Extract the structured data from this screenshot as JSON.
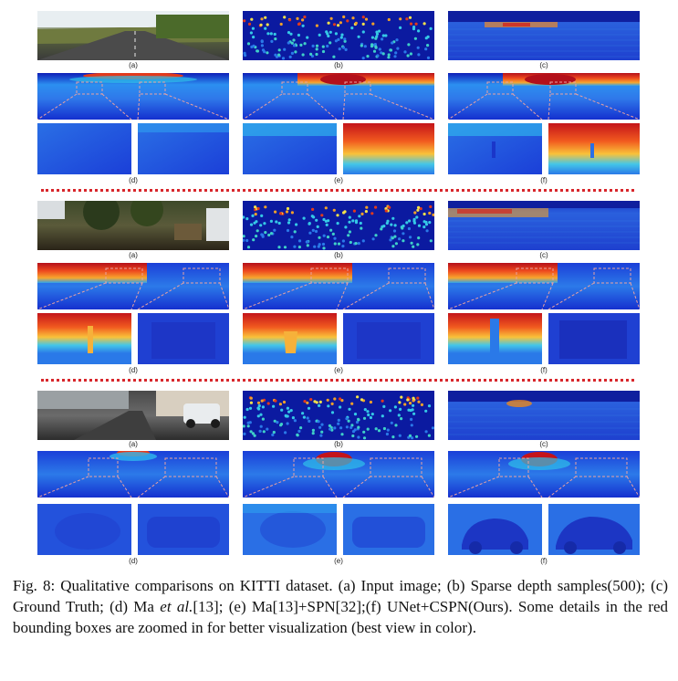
{
  "figure": {
    "groups": [
      {
        "row1_labels": [
          "(a)",
          "(b)",
          "(c)"
        ],
        "row2_labels": [
          "(d)",
          "(e)",
          "(f)"
        ]
      },
      {
        "row1_labels": [
          "(a)",
          "(b)",
          "(c)"
        ],
        "row2_labels": [
          "(d)",
          "(e)",
          "(f)"
        ]
      },
      {
        "row1_labels": [
          "(a)",
          "(b)",
          "(c)"
        ],
        "row2_labels": [
          "(d)",
          "(e)",
          "(f)"
        ]
      }
    ]
  },
  "caption": {
    "prefix": "Fig. 8: Qualitative comparisons on KITTI dataset. (a) Input image; (b) Sparse depth samples(500); (c) Ground Truth; (d) Ma ",
    "italic": "et al.",
    "suffix": "[13]; (e) Ma[13]+SPN[32];(f) UNet+CSPN(Ours). Some details in the red bounding boxes are zoomed in for better visualization (best view in color)."
  },
  "colors": {
    "depth_far": "#1a2fd6",
    "depth_mid": "#27a8f0",
    "depth_near": "#e8361c",
    "separator": "#d8262b"
  }
}
